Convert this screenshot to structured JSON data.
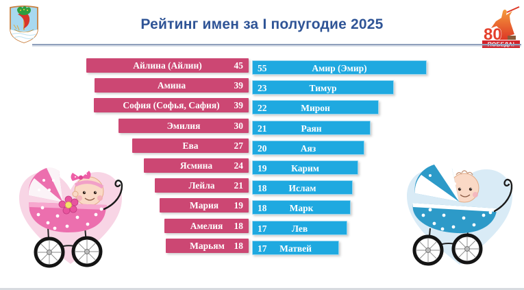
{
  "title": "Рейтинг имен за I полугодие 2025",
  "header": {
    "left_logo": "naberezhnye-chelny-coat-of-arms",
    "right_logo": {
      "name": "victory-80-anniversary-logo",
      "number": "80",
      "banner": "ПОБЕДА!"
    }
  },
  "colors": {
    "girls_bar": "#CC4773",
    "boys_bar": "#1FA9E0",
    "title_text": "#2F5496",
    "bar_text": "#FFFFFF"
  },
  "chart_data": {
    "type": "bar",
    "orientation": "horizontal",
    "title": "Рейтинг имен за I полугодие 2025",
    "legend_position": "none",
    "series": [
      {
        "name": "girls",
        "color": "#CC4773",
        "align": "right",
        "items": [
          {
            "label": "Айлина (Айлин)",
            "value": 45
          },
          {
            "label": "Амина",
            "value": 39
          },
          {
            "label": "София (Софья, Сафия)",
            "value": 39
          },
          {
            "label": "Эмилия",
            "value": 30
          },
          {
            "label": "Ева",
            "value": 27
          },
          {
            "label": "Ясмина",
            "value": 24
          },
          {
            "label": "Лейла",
            "value": 21
          },
          {
            "label": "Мария",
            "value": 19
          },
          {
            "label": "Амелия",
            "value": 18
          },
          {
            "label": "Марьям",
            "value": 18
          }
        ]
      },
      {
        "name": "boys",
        "color": "#1FA9E0",
        "align": "left",
        "items": [
          {
            "label": "Амир (Эмир)",
            "value": 55
          },
          {
            "label": "Тимур",
            "value": 23
          },
          {
            "label": "Мирон",
            "value": 22
          },
          {
            "label": "Раян",
            "value": 21
          },
          {
            "label": "Аяз",
            "value": 20
          },
          {
            "label": "Карим",
            "value": 19
          },
          {
            "label": "Ислам",
            "value": 18
          },
          {
            "label": "Марк",
            "value": 18
          },
          {
            "label": "Лев",
            "value": 17
          },
          {
            "label": "Матвей",
            "value": 17
          }
        ]
      }
    ]
  },
  "illustrations": {
    "left": "pink-heart-baby-girl-carriage",
    "right": "blue-heart-baby-boy-carriage"
  }
}
